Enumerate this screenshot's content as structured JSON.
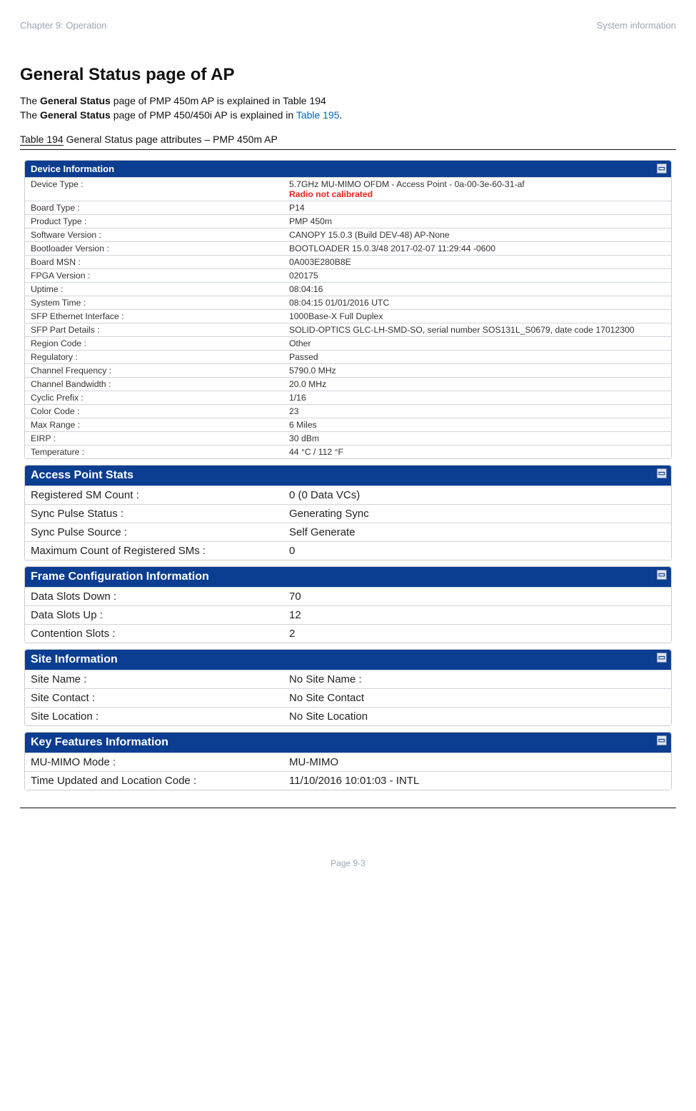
{
  "header": {
    "chapter": "Chapter 9:  Operation",
    "topic": "System information"
  },
  "title": "General Status page of AP",
  "intro": {
    "line1_pre": "The ",
    "line1_bold": "General Status",
    "line1_post": " page of PMP 450m AP is explained in Table 194",
    "line2_pre": "The ",
    "line2_bold": "General Status",
    "line2_mid": " page of PMP 450/450i AP is explained in ",
    "line2_link": "Table 195",
    "line2_post": "."
  },
  "caption": {
    "prefix": "Table 194",
    "text": " General Status page attributes – PMP 450m AP"
  },
  "panels": {
    "device_info": {
      "header": "Device Information",
      "rows": [
        {
          "label": "Device Type :",
          "value": "5.7GHz MU-MIMO OFDM - Access Point - 0a-00-3e-60-31-af",
          "warn": "Radio not calibrated"
        },
        {
          "label": "Board Type :",
          "value": "P14"
        },
        {
          "label": "Product Type :",
          "value": "PMP 450m"
        },
        {
          "label": "Software Version :",
          "value": "CANOPY 15.0.3 (Build DEV-48) AP-None"
        },
        {
          "label": "Bootloader Version :",
          "value": "BOOTLOADER 15.0.3/48 2017-02-07 11:29:44 -0600"
        },
        {
          "label": "Board MSN :",
          "value": "0A003E280B8E"
        },
        {
          "label": "FPGA Version :",
          "value": "020175"
        },
        {
          "label": "Uptime :",
          "value": "08:04:16"
        },
        {
          "label": "System Time :",
          "value": "08:04:15 01/01/2016 UTC"
        },
        {
          "label": "SFP Ethernet Interface :",
          "value": "1000Base-X Full Duplex"
        },
        {
          "label": "SFP Part Details :",
          "value": "SOLID-OPTICS GLC-LH-SMD-SO, serial number SOS131L_S0679, date code 17012300"
        },
        {
          "label": "Region Code :",
          "value": "Other"
        },
        {
          "label": "Regulatory :",
          "value": "Passed"
        },
        {
          "label": "Channel Frequency :",
          "value": "5790.0 MHz"
        },
        {
          "label": "Channel Bandwidth :",
          "value": "20.0 MHz"
        },
        {
          "label": "Cyclic Prefix :",
          "value": "1/16"
        },
        {
          "label": "Color Code :",
          "value": "23"
        },
        {
          "label": "Max Range :",
          "value": "6 Miles"
        },
        {
          "label": "EIRP :",
          "value": "30 dBm"
        },
        {
          "label": "Temperature :",
          "value": "44 °C / 112 °F"
        }
      ]
    },
    "ap_stats": {
      "header": "Access Point Stats",
      "rows": [
        {
          "label": "Registered SM Count :",
          "value": "0 (0 Data VCs)"
        },
        {
          "label": "Sync Pulse Status :",
          "value": "Generating Sync"
        },
        {
          "label": "Sync Pulse Source :",
          "value": "Self Generate"
        },
        {
          "label": "Maximum Count of Registered SMs :",
          "value": "0"
        }
      ]
    },
    "frame_config": {
      "header": "Frame Configuration Information",
      "rows": [
        {
          "label": "Data Slots Down :",
          "value": "70"
        },
        {
          "label": "Data Slots Up :",
          "value": "12"
        },
        {
          "label": "Contention Slots :",
          "value": "2"
        }
      ]
    },
    "site_info": {
      "header": "Site Information",
      "rows": [
        {
          "label": "Site Name :",
          "value": "No Site Name :"
        },
        {
          "label": "Site Contact :",
          "value": "No Site Contact"
        },
        {
          "label": "Site Location :",
          "value": "No Site Location"
        }
      ]
    },
    "key_features": {
      "header": "Key Features Information",
      "rows": [
        {
          "label": "MU-MIMO Mode :",
          "value": "MU-MIMO"
        },
        {
          "label": "Time Updated and Location Code :",
          "value": "11/10/2016 10:01:03 - INTL"
        }
      ]
    }
  },
  "collapse_glyph": "▭",
  "footer": "Page 9-3"
}
